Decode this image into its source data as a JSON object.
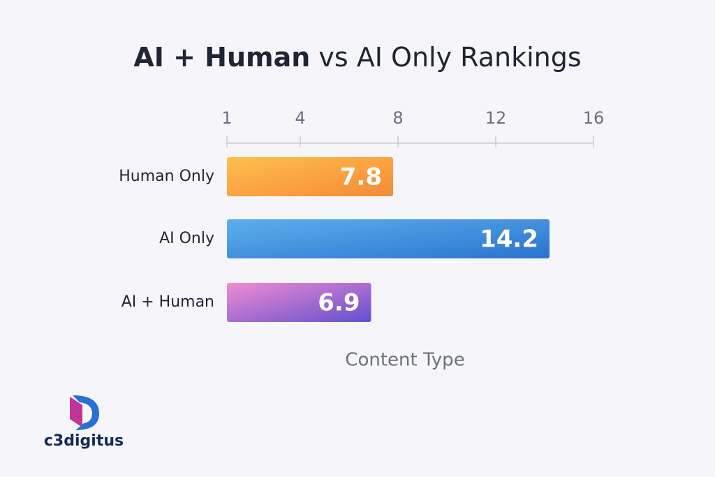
{
  "chart_data": {
    "type": "bar",
    "orientation": "horizontal",
    "title": [
      "AI + Human",
      "vs AI Only Rankings"
    ],
    "x_label": "Content Type",
    "categories": [
      "Human Only",
      "AI Only",
      "AI + Human"
    ],
    "values": [
      7.8,
      14.2,
      6.9
    ],
    "gradients": [
      [
        "#ffbf4d",
        "#f68a36"
      ],
      [
        "#5cb0ec",
        "#2a74cf"
      ],
      [
        "#f08cd0",
        "#6450cf"
      ]
    ],
    "xlim": [
      1,
      16
    ],
    "xticks": [
      1,
      4,
      8,
      12,
      16
    ]
  },
  "logo": {
    "text": "c3digitus"
  }
}
